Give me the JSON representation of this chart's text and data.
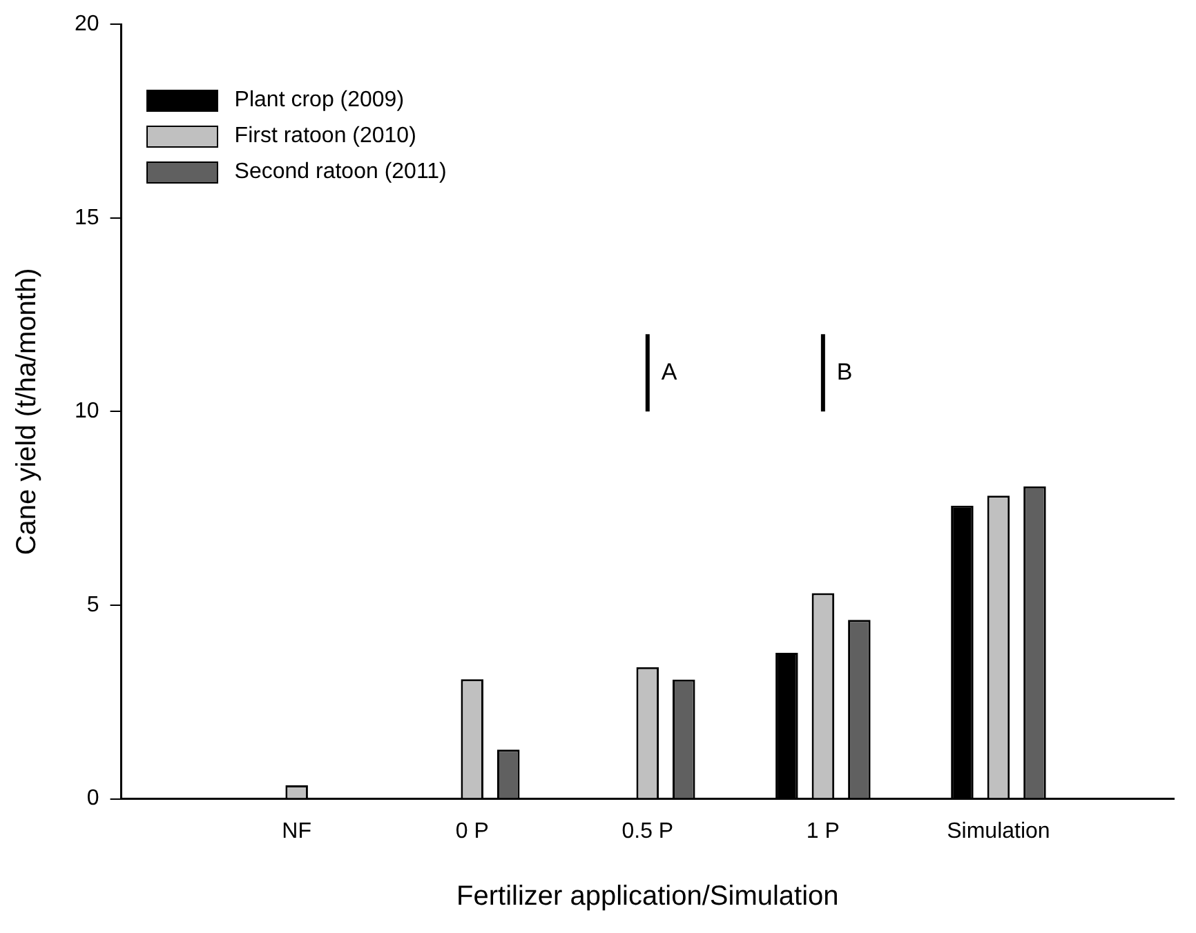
{
  "chart_data": {
    "type": "bar",
    "xlabel": "Fertilizer application/Simulation",
    "ylabel": "Cane yield (t/ha/month)",
    "categories": [
      null,
      "NF",
      "0 P",
      "0.5 P",
      "1 P",
      "Simulation",
      null
    ],
    "series": [
      {
        "name": "Plant crop (2009)",
        "color": "#000000",
        "values": [
          null,
          null,
          null,
          null,
          3.77,
          7.57,
          null
        ]
      },
      {
        "name": "First ratoon (2010)",
        "color": "#c0c0c0",
        "values": [
          null,
          0.35,
          3.09,
          3.4,
          5.31,
          7.83,
          null
        ]
      },
      {
        "name": "Second ratoon (2011)",
        "color": "#606060",
        "values": [
          null,
          null,
          1.27,
          3.08,
          4.62,
          8.07,
          null
        ]
      }
    ],
    "ylim": [
      0,
      20
    ],
    "yticks": [
      0,
      5,
      10,
      15,
      20
    ],
    "grid": false,
    "legend": "top left",
    "annotations": [
      "A",
      "B"
    ]
  }
}
